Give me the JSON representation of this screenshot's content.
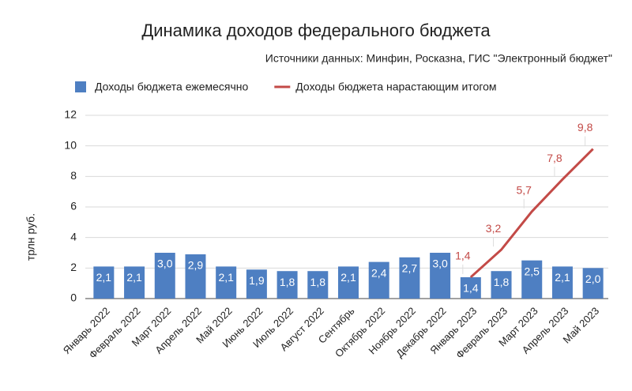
{
  "chart_data": {
    "type": "bar",
    "title": "Динамика доходов федерального бюджета",
    "subtitle": "Источники данных: Минфин, Росказна, ГИС \"Электронный бюджет\"",
    "y_label": "трлн руб.",
    "categories": [
      "Январь 2022",
      "Февраль 2022",
      "Март 2022",
      "Апрель 2022",
      "Май 2022",
      "Июнь 2022",
      "Июль 2022",
      "Август 2022",
      "Сентябрь",
      "Октябрь 2022",
      "Ноябрь 2022",
      "Декабрь 2022",
      "Январь 2023",
      "Февраль 2023",
      "Март 2023",
      "Апрель 2023",
      "Май 2023"
    ],
    "series": [
      {
        "name": "Доходы бюджета ежемесячно",
        "type": "bar",
        "color": "#4e7fc2",
        "values": [
          2.1,
          2.1,
          3.0,
          2.9,
          2.1,
          1.9,
          1.8,
          1.8,
          2.1,
          2.4,
          2.7,
          3.0,
          1.4,
          1.8,
          2.5,
          2.1,
          2.0
        ],
        "value_labels": [
          "2,1",
          "2,1",
          "3,0",
          "2,9",
          "2,1",
          "1,9",
          "1,8",
          "1,8",
          "2,1",
          "2,4",
          "2,7",
          "3,0",
          "1,4",
          "1,8",
          "2,5",
          "2,1",
          "2,0"
        ]
      },
      {
        "name": "Доходы бюджета нарастающим итогом",
        "type": "line",
        "color": "#c34a47",
        "values": [
          null,
          null,
          null,
          null,
          null,
          null,
          null,
          null,
          null,
          null,
          null,
          null,
          1.4,
          3.2,
          5.7,
          7.8,
          9.8
        ],
        "value_labels": [
          null,
          null,
          null,
          null,
          null,
          null,
          null,
          null,
          null,
          null,
          null,
          null,
          "1,4",
          "3,2",
          "5,7",
          "7,8",
          "9,8"
        ]
      }
    ],
    "ylim": [
      0,
      12
    ],
    "yticks": [
      0,
      2,
      4,
      6,
      8,
      10,
      12
    ],
    "grid": true,
    "legend": "top"
  }
}
